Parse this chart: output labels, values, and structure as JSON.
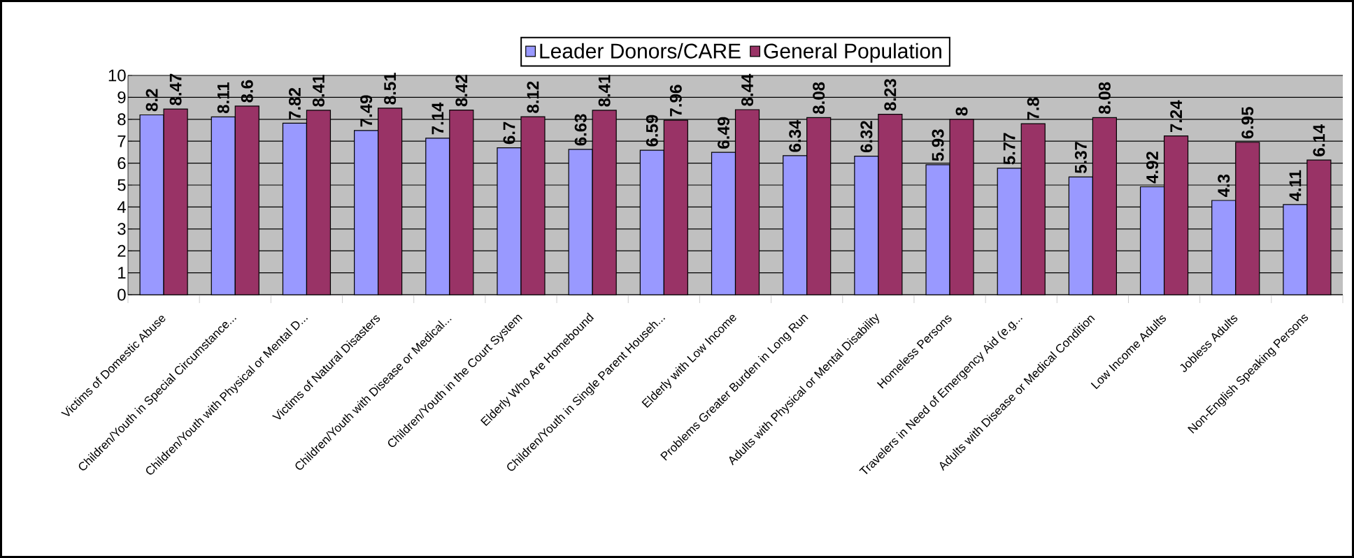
{
  "chart_data": {
    "type": "bar",
    "categories": [
      "Victims of Domestic Abuse",
      "Children/Youth in Special Circumstance...",
      "Children/Youth with Physical or Mental D...",
      "Victims of Natural Disasters",
      "Children/Youth with Disease or Medical...",
      "Children/Youth in the Court System",
      "Elderly Who Are Homebound",
      "Children/Youth in Single Parent Househ...",
      "Elderly with Low Income",
      "Problems Greater Burden in Long Run",
      "Adults with Physical or Mental Disability",
      "Homeless Persons",
      "Travelers in Need of Emergency Aid (e.g...",
      "Adults with Disease or Medical Condition",
      "Low Income Adults",
      "Jobless Adults",
      "Non-English Speaking Persons"
    ],
    "series": [
      {
        "name": "Leader Donors/CARE",
        "color": "#9999ff",
        "values": [
          8.2,
          8.11,
          7.82,
          7.49,
          7.14,
          6.7,
          6.63,
          6.59,
          6.49,
          6.34,
          6.32,
          5.93,
          5.77,
          5.37,
          4.92,
          4.3,
          4.11
        ]
      },
      {
        "name": "General Population",
        "color": "#993366",
        "values": [
          8.47,
          8.6,
          8.41,
          8.51,
          8.42,
          8.12,
          8.41,
          7.96,
          8.44,
          8.08,
          8.23,
          8,
          7.8,
          8.08,
          7.24,
          6.95,
          6.14
        ]
      }
    ],
    "ylim": [
      0,
      10
    ],
    "yticks": [
      0,
      1,
      2,
      3,
      4,
      5,
      6,
      7,
      8,
      9,
      10
    ],
    "grid": "y",
    "legend": "top",
    "data_labels": true
  }
}
